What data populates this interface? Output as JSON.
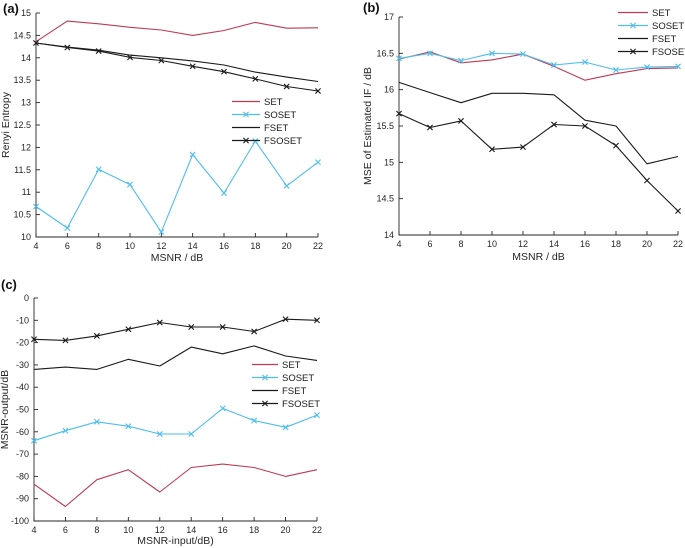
{
  "figure": {
    "background": "#ffffff",
    "panel_labels": [
      "(a)",
      "(b)",
      "(c)"
    ]
  },
  "colors": {
    "set_red": "#bf3a50",
    "soset_blue": "#4dbeee",
    "fset_black": "#1a1a1a",
    "fsoset_black": "#1a1a1a",
    "axis": "#262626",
    "tick_text": "#262626"
  },
  "legend_labels": [
    "SET",
    "SOSET",
    "FSET",
    "FSOSET"
  ],
  "chart_data": [
    {
      "id": "a",
      "panel_label": "(a)",
      "type": "line",
      "title": "",
      "xlabel": "MSNR / dB",
      "ylabel": "Renyi Entropy",
      "xlim": [
        4,
        22
      ],
      "ylim": [
        10,
        15
      ],
      "grid": false,
      "legend_position": "inside-middle-right",
      "x": [
        4,
        6,
        8,
        10,
        12,
        14,
        16,
        18,
        20,
        22
      ],
      "xticks": [
        4,
        6,
        8,
        10,
        12,
        14,
        16,
        18,
        20,
        22
      ],
      "xtick_labels": [
        "4",
        "6",
        "8",
        "10",
        "12",
        "14",
        "16",
        "18",
        "20",
        "22"
      ],
      "yticks": [
        10,
        10.5,
        11,
        11.5,
        12,
        12.5,
        13,
        13.5,
        14,
        14.5,
        15
      ],
      "ytick_labels": [
        "10",
        "10.5",
        "11",
        "11.5",
        "12",
        "12.5",
        "13",
        "13.5",
        "14",
        "14.5",
        "15"
      ],
      "series": [
        {
          "name": "SET",
          "color": "#bf3a50",
          "marker": "none",
          "values": [
            14.36,
            14.82,
            14.76,
            14.68,
            14.62,
            14.5,
            14.61,
            14.79,
            14.66,
            14.67
          ]
        },
        {
          "name": "SOSET",
          "color": "#4dbeee",
          "marker": "x",
          "values": [
            10.68,
            10.2,
            11.51,
            11.17,
            10.11,
            11.84,
            10.98,
            12.14,
            11.14,
            11.67
          ]
        },
        {
          "name": "FSET",
          "color": "#1a1a1a",
          "marker": "none",
          "values": [
            14.33,
            14.24,
            14.17,
            14.06,
            14.0,
            13.93,
            13.84,
            13.68,
            13.57,
            13.47
          ]
        },
        {
          "name": "FSOSET",
          "color": "#1a1a1a",
          "marker": "x",
          "values": [
            14.33,
            14.23,
            14.15,
            14.01,
            13.94,
            13.81,
            13.69,
            13.53,
            13.36,
            13.26
          ]
        }
      ]
    },
    {
      "id": "b",
      "panel_label": "(b)",
      "type": "line",
      "title": "",
      "xlabel": "MSNR / dB",
      "ylabel": "MSE of Estimated IF / dB",
      "xlim": [
        4,
        22
      ],
      "ylim": [
        14,
        17
      ],
      "grid": false,
      "legend_position": "top-right",
      "x": [
        4,
        6,
        8,
        10,
        12,
        14,
        16,
        18,
        20,
        22
      ],
      "xticks": [
        4,
        6,
        8,
        10,
        12,
        14,
        16,
        18,
        20,
        22
      ],
      "xtick_labels": [
        "4",
        "6",
        "8",
        "10",
        "12",
        "14",
        "16",
        "18",
        "20",
        "22"
      ],
      "yticks": [
        14,
        14.5,
        15,
        15.5,
        16,
        16.5,
        17
      ],
      "ytick_labels": [
        "14",
        "14.5",
        "15",
        "15.5",
        "16",
        "16.5",
        "17"
      ],
      "series": [
        {
          "name": "SET",
          "color": "#bf3a50",
          "marker": "none",
          "values": [
            16.42,
            16.52,
            16.37,
            16.41,
            16.49,
            16.32,
            16.13,
            16.22,
            16.29,
            16.3
          ]
        },
        {
          "name": "SOSET",
          "color": "#4dbeee",
          "marker": "x",
          "values": [
            16.43,
            16.5,
            16.4,
            16.5,
            16.49,
            16.34,
            16.38,
            16.27,
            16.31,
            16.32
          ]
        },
        {
          "name": "FSET",
          "color": "#1a1a1a",
          "marker": "none",
          "values": [
            16.1,
            15.96,
            15.82,
            15.95,
            15.95,
            15.93,
            15.58,
            15.5,
            14.98,
            15.08
          ]
        },
        {
          "name": "FSOSET",
          "color": "#1a1a1a",
          "marker": "x",
          "values": [
            15.67,
            15.48,
            15.57,
            15.18,
            15.21,
            15.52,
            15.5,
            15.23,
            14.75,
            14.33
          ]
        }
      ]
    },
    {
      "id": "c",
      "panel_label": "(c)",
      "type": "line",
      "title": "",
      "xlabel": "MSNR-input/dB)",
      "ylabel": "MSNR-output/dB",
      "xlim": [
        4,
        22
      ],
      "ylim": [
        -100,
        0
      ],
      "grid": false,
      "legend_position": "inside-middle-right",
      "x": [
        4,
        6,
        8,
        10,
        12,
        14,
        16,
        18,
        20,
        22
      ],
      "xticks": [
        4,
        6,
        8,
        10,
        12,
        14,
        16,
        18,
        20,
        22
      ],
      "xtick_labels": [
        "4",
        "6",
        "8",
        "10",
        "12",
        "14",
        "16",
        "18",
        "20",
        "22"
      ],
      "yticks": [
        -100,
        -90,
        -80,
        -70,
        -60,
        -50,
        -40,
        -30,
        -20,
        -10,
        0
      ],
      "ytick_labels": [
        "-100",
        "-90",
        "-80",
        "-70",
        "-60",
        "-50",
        "-40",
        "-30",
        "-20",
        "-10",
        "0"
      ],
      "series": [
        {
          "name": "SET",
          "color": "#bf3a50",
          "marker": "none",
          "values": [
            -83.5,
            -93.5,
            -81.5,
            -77.0,
            -87.0,
            -76.0,
            -74.5,
            -76.0,
            -80.0,
            -77.0
          ]
        },
        {
          "name": "SOSET",
          "color": "#4dbeee",
          "marker": "x",
          "values": [
            -64.0,
            -59.5,
            -55.5,
            -57.5,
            -61.0,
            -61.0,
            -49.5,
            -55.0,
            -58.0,
            -52.5
          ]
        },
        {
          "name": "FSET",
          "color": "#1a1a1a",
          "marker": "none",
          "values": [
            -32.0,
            -31.0,
            -32.0,
            -27.5,
            -30.5,
            -22.0,
            -25.0,
            -21.5,
            -26.0,
            -28.0
          ]
        },
        {
          "name": "FSOSET",
          "color": "#1a1a1a",
          "marker": "x",
          "values": [
            -18.5,
            -19.0,
            -17.0,
            -14.0,
            -11.0,
            -13.0,
            -13.0,
            -15.0,
            -9.5,
            -10.0
          ]
        }
      ]
    }
  ]
}
